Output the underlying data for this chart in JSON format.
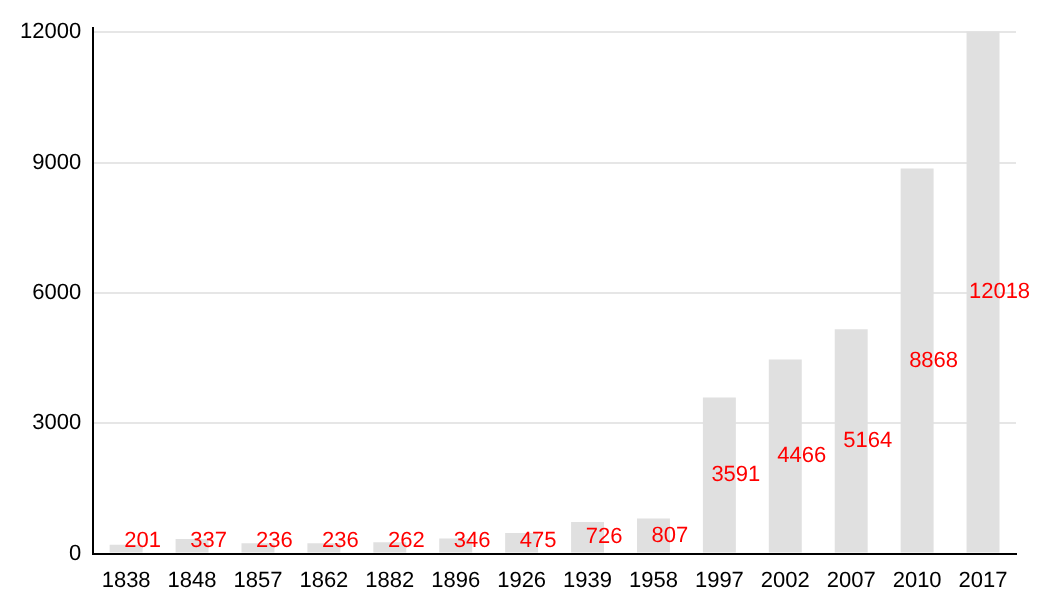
{
  "chart_data": {
    "type": "bar",
    "categories": [
      "1838",
      "1848",
      "1857",
      "1862",
      "1882",
      "1896",
      "1926",
      "1939",
      "1958",
      "1997",
      "2002",
      "2007",
      "2010",
      "2017"
    ],
    "values": [
      201,
      337,
      236,
      236,
      262,
      346,
      475,
      726,
      807,
      3591,
      4466,
      5164,
      8868,
      12018
    ],
    "color": "#e0e0e0",
    "ylim": [
      0,
      12100
    ],
    "yticks": [
      0,
      3000,
      6000,
      9000,
      12000
    ],
    "grid": "y",
    "data_labels": true,
    "legend": false
  }
}
